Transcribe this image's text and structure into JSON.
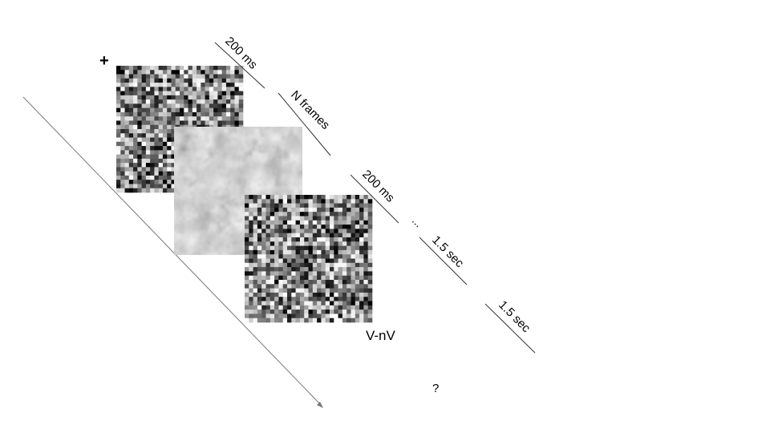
{
  "fixation": {
    "symbol": "+"
  },
  "timeline": {
    "label_200ms_first": "200 ms",
    "label_n_frames": "N frames",
    "label_200ms_second": "200 ms",
    "label_ellipsis": "...",
    "label_1_5_sec_first": "1.5 sec",
    "label_1_5_sec_second": "1.5 sec"
  },
  "response": {
    "condition_label": "V-nV",
    "question_mark": "?"
  },
  "frames": [
    {
      "name": "noise-mask-first",
      "kind": "noise"
    },
    {
      "name": "target-image",
      "kind": "image"
    },
    {
      "name": "noise-mask-second",
      "kind": "noise"
    }
  ],
  "colors": {
    "line": "#333333",
    "arrow": "#777777",
    "text": "#000000"
  }
}
